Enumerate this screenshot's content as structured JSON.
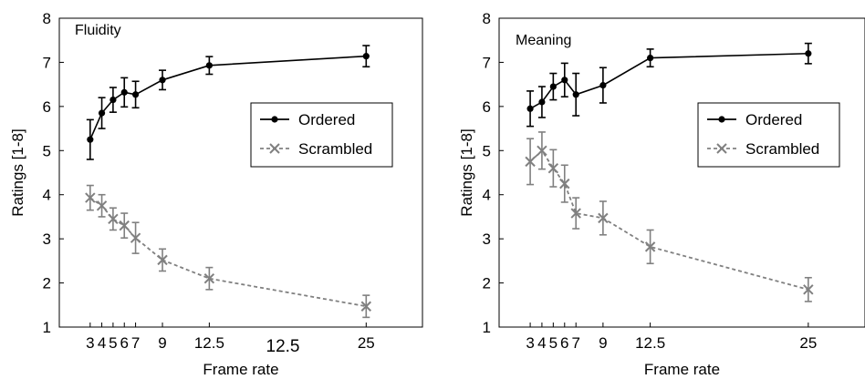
{
  "chart_data": [
    {
      "type": "line",
      "title": "Fluidity",
      "xlabel": "Frame rate",
      "ylabel": "Ratings [1-8]",
      "ylim": [
        1,
        8
      ],
      "yticks": [
        1,
        2,
        3,
        4,
        5,
        6,
        7,
        8
      ],
      "xticks": [
        {
          "x": 3,
          "label": "3"
        },
        {
          "x": 4,
          "label": "4"
        },
        {
          "x": 5,
          "label": "5"
        },
        {
          "x": 6,
          "label": "6"
        },
        {
          "x": 7,
          "label": "7"
        },
        {
          "x": 9,
          "label": "9"
        },
        {
          "x": 12.5,
          "label": "12.5"
        },
        {
          "x": 25,
          "label": "25"
        }
      ],
      "extra_labels": [
        "12.5"
      ],
      "x": [
        3,
        4,
        5,
        6,
        7,
        9,
        12.5,
        25
      ],
      "legend_position": "right",
      "series": [
        {
          "name": "Ordered",
          "color": "#000000",
          "marker": "circle",
          "dash": "solid",
          "values": [
            5.25,
            5.85,
            6.15,
            6.32,
            6.27,
            6.6,
            6.93,
            7.14
          ],
          "errors": [
            0.45,
            0.35,
            0.28,
            0.33,
            0.3,
            0.22,
            0.2,
            0.24
          ]
        },
        {
          "name": "Scrambled",
          "color": "#808080",
          "marker": "x",
          "dash": "dashed",
          "values": [
            3.93,
            3.75,
            3.45,
            3.3,
            3.02,
            2.52,
            2.1,
            1.47
          ],
          "errors": [
            0.28,
            0.25,
            0.25,
            0.28,
            0.35,
            0.25,
            0.25,
            0.25
          ]
        }
      ]
    },
    {
      "type": "line",
      "title": "Meaning",
      "xlabel": "Frame rate",
      "ylabel": "Ratings [1-8]",
      "ylim": [
        1,
        8
      ],
      "yticks": [
        1,
        2,
        3,
        4,
        5,
        6,
        7,
        8
      ],
      "xticks": [
        {
          "x": 3,
          "label": "3"
        },
        {
          "x": 4,
          "label": "4"
        },
        {
          "x": 5,
          "label": "5"
        },
        {
          "x": 6,
          "label": "6"
        },
        {
          "x": 7,
          "label": "7"
        },
        {
          "x": 9,
          "label": "9"
        },
        {
          "x": 12.5,
          "label": "12.5"
        },
        {
          "x": 25,
          "label": "25"
        }
      ],
      "extra_labels": [],
      "x": [
        3,
        4,
        5,
        6,
        7,
        9,
        12.5,
        25
      ],
      "legend_position": "right",
      "series": [
        {
          "name": "Ordered",
          "color": "#000000",
          "marker": "circle",
          "dash": "solid",
          "values": [
            5.95,
            6.1,
            6.45,
            6.6,
            6.27,
            6.48,
            7.1,
            7.2
          ],
          "errors": [
            0.4,
            0.35,
            0.3,
            0.38,
            0.48,
            0.4,
            0.2,
            0.23
          ]
        },
        {
          "name": "Scrambled",
          "color": "#808080",
          "marker": "x",
          "dash": "dashed",
          "values": [
            4.75,
            5.0,
            4.6,
            4.25,
            3.58,
            3.47,
            2.82,
            1.85
          ],
          "errors": [
            0.52,
            0.42,
            0.42,
            0.42,
            0.35,
            0.38,
            0.38,
            0.27
          ]
        }
      ]
    }
  ]
}
